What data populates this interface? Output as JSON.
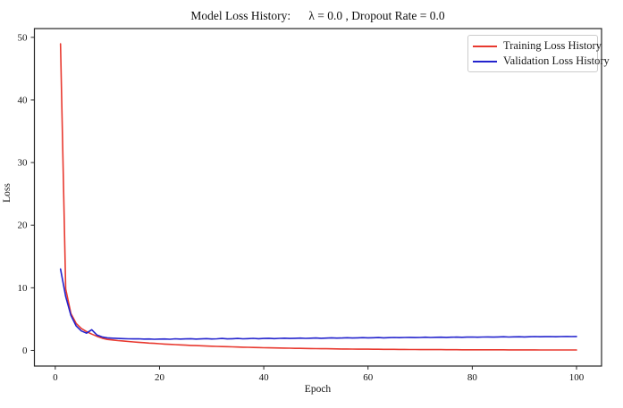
{
  "chart_data": {
    "type": "line",
    "title": "Model Loss History:      λ = 0.0 , Dropout Rate = 0.0",
    "xlabel": "Epoch",
    "ylabel": "Loss",
    "xlim": [
      -4,
      104.8
    ],
    "ylim": [
      -2.5,
      51.4
    ],
    "xticks": [
      0,
      20,
      40,
      60,
      80,
      100
    ],
    "yticks": [
      0,
      10,
      20,
      30,
      40,
      50
    ],
    "grid": false,
    "legend_position": "upper right",
    "background_color": "#ffffff",
    "spine_color": "#262626",
    "x": [
      1,
      2,
      3,
      4,
      5,
      6,
      7,
      8,
      9,
      10,
      11,
      12,
      13,
      14,
      15,
      16,
      17,
      18,
      19,
      20,
      21,
      22,
      23,
      24,
      25,
      26,
      27,
      28,
      29,
      30,
      31,
      32,
      33,
      34,
      35,
      36,
      37,
      38,
      39,
      40,
      41,
      42,
      43,
      44,
      45,
      46,
      47,
      48,
      49,
      50,
      51,
      52,
      53,
      54,
      55,
      56,
      57,
      58,
      59,
      60,
      61,
      62,
      63,
      64,
      65,
      66,
      67,
      68,
      69,
      70,
      71,
      72,
      73,
      74,
      75,
      76,
      77,
      78,
      79,
      80,
      81,
      82,
      83,
      84,
      85,
      86,
      87,
      88,
      89,
      90,
      91,
      92,
      93,
      94,
      95,
      96,
      97,
      98,
      99,
      100
    ],
    "series": [
      {
        "name": "Training Loss History",
        "color": "#e8392f",
        "values": [
          48.96,
          9.8,
          5.9,
          4.3,
          3.5,
          3.0,
          2.6,
          2.25,
          1.95,
          1.75,
          1.66,
          1.57,
          1.5,
          1.42,
          1.35,
          1.29,
          1.23,
          1.17,
          1.12,
          1.06,
          1.01,
          0.97,
          0.92,
          0.88,
          0.84,
          0.8,
          0.77,
          0.73,
          0.7,
          0.67,
          0.64,
          0.61,
          0.59,
          0.56,
          0.54,
          0.51,
          0.49,
          0.47,
          0.45,
          0.43,
          0.41,
          0.4,
          0.38,
          0.36,
          0.35,
          0.33,
          0.32,
          0.31,
          0.29,
          0.28,
          0.27,
          0.26,
          0.25,
          0.24,
          0.23,
          0.22,
          0.21,
          0.2,
          0.2,
          0.19,
          0.18,
          0.18,
          0.17,
          0.16,
          0.16,
          0.15,
          0.15,
          0.14,
          0.14,
          0.13,
          0.13,
          0.12,
          0.12,
          0.12,
          0.11,
          0.11,
          0.11,
          0.1,
          0.1,
          0.1,
          0.1,
          0.09,
          0.09,
          0.09,
          0.09,
          0.09,
          0.08,
          0.08,
          0.08,
          0.08,
          0.08,
          0.08,
          0.07,
          0.07,
          0.07,
          0.07,
          0.07,
          0.07,
          0.07,
          0.07
        ]
      },
      {
        "name": "Validation Loss History",
        "color": "#2323cd",
        "values": [
          13.0,
          8.6,
          5.6,
          3.9,
          3.1,
          2.75,
          3.3,
          2.45,
          2.15,
          2.0,
          1.95,
          1.9,
          1.88,
          1.85,
          1.83,
          1.85,
          1.8,
          1.82,
          1.78,
          1.8,
          1.82,
          1.78,
          1.85,
          1.8,
          1.83,
          1.86,
          1.8,
          1.84,
          1.88,
          1.82,
          1.85,
          1.9,
          1.84,
          1.87,
          1.9,
          1.85,
          1.88,
          1.92,
          1.87,
          1.9,
          1.93,
          1.88,
          1.92,
          1.95,
          1.9,
          1.93,
          1.96,
          1.92,
          1.95,
          1.98,
          1.94,
          1.97,
          2.0,
          1.96,
          1.98,
          2.02,
          1.98,
          2.0,
          2.03,
          2.0,
          2.02,
          2.05,
          2.01,
          2.04,
          2.07,
          2.03,
          2.06,
          2.08,
          2.05,
          2.07,
          2.1,
          2.06,
          2.09,
          2.11,
          2.08,
          2.1,
          2.12,
          2.09,
          2.12,
          2.14,
          2.11,
          2.13,
          2.15,
          2.12,
          2.15,
          2.17,
          2.14,
          2.16,
          2.18,
          2.15,
          2.18,
          2.2,
          2.17,
          2.19,
          2.21,
          2.18,
          2.2,
          2.22,
          2.2,
          2.22
        ]
      }
    ]
  }
}
